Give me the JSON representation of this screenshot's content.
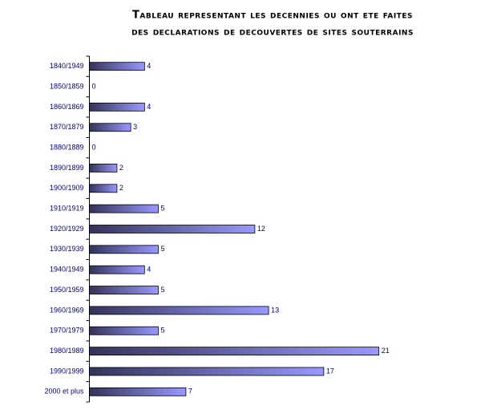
{
  "chart_data": {
    "type": "bar",
    "orientation": "horizontal",
    "title": [
      "Tableau representant les decennies ou ont ete faites",
      "des declarations de decouvertes de sites souterrains"
    ],
    "categories": [
      "1840/1949",
      "1850/1859",
      "1860/1869",
      "1870/1879",
      "1880/1889",
      "1890/1899",
      "1900/1909",
      "1910/1919",
      "1920/1929",
      "1930/1939",
      "1940/1949",
      "1950/1959",
      "1960/1969",
      "1970/1979",
      "1980/1989",
      "1990/1999",
      "2000 et plus"
    ],
    "values": [
      4,
      0,
      4,
      3,
      0,
      2,
      2,
      5,
      12,
      5,
      4,
      5,
      13,
      5,
      21,
      17,
      7
    ],
    "color": "#9999ff"
  }
}
